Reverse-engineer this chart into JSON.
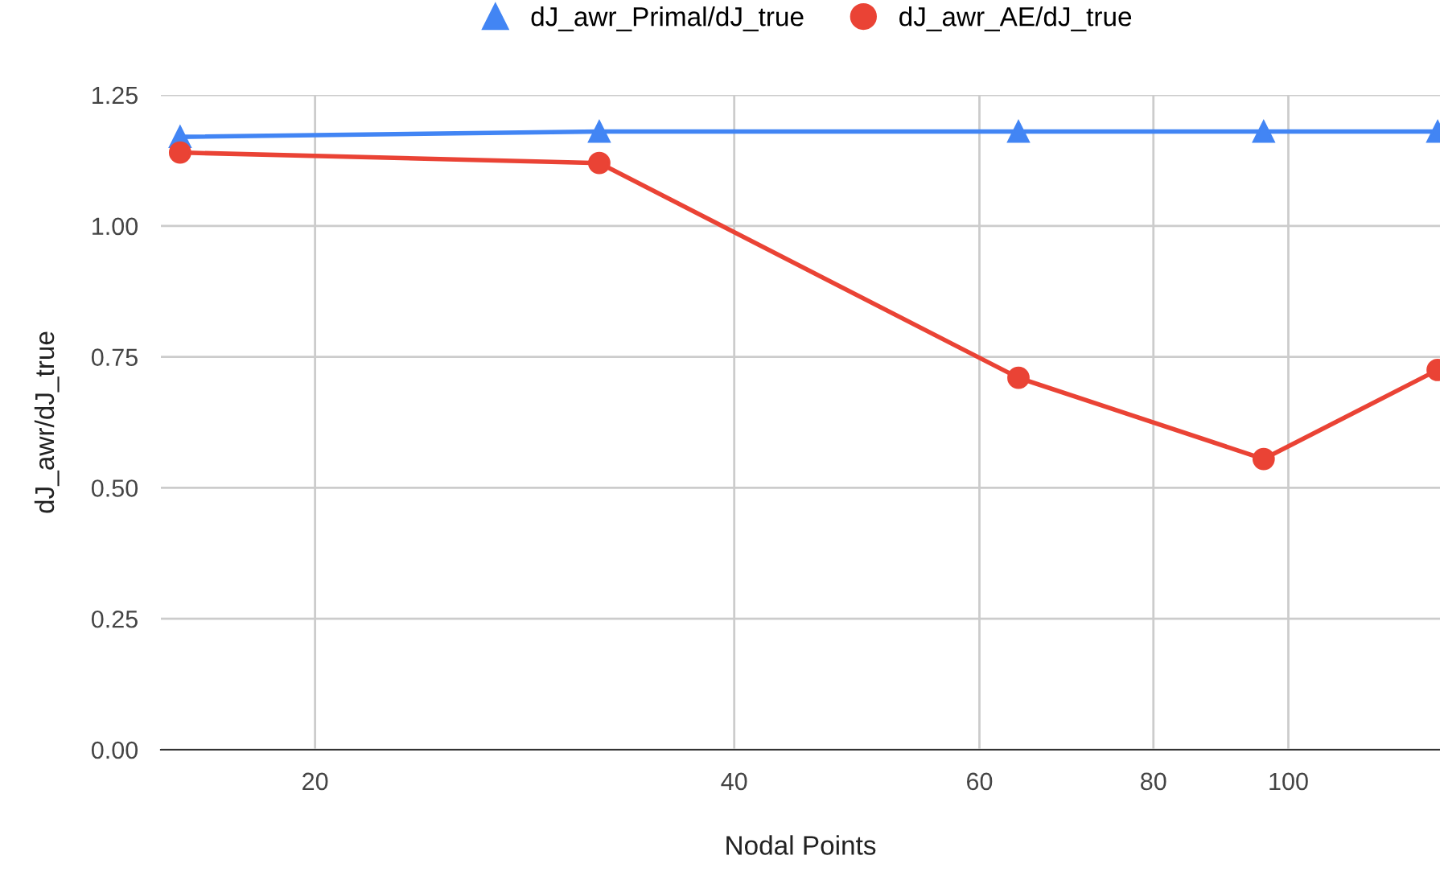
{
  "chart_data": {
    "type": "line",
    "xlabel": "Nodal Points",
    "ylabel": "dJ_awr/dJ_true",
    "x": [
      16,
      32,
      64,
      96,
      128
    ],
    "series": [
      {
        "name": "dJ_awr_Primal/dJ_true",
        "color": "#4285f4",
        "marker": "triangle",
        "values": [
          1.17,
          1.18,
          1.18,
          1.18,
          1.18
        ]
      },
      {
        "name": "dJ_awr_AE/dJ_true",
        "color": "#ea4335",
        "marker": "circle",
        "values": [
          1.14,
          1.12,
          0.71,
          0.555,
          0.725
        ]
      }
    ],
    "log": "x",
    "xlim": [
      15.5,
      128.5
    ],
    "xticks": [
      20,
      40,
      60,
      80,
      100
    ],
    "ylim": [
      0,
      1.25
    ],
    "yticks": [
      {
        "value": 0,
        "label": "0.00"
      },
      {
        "value": 0.25,
        "label": "0.25"
      },
      {
        "value": 0.5,
        "label": "0.50"
      },
      {
        "value": 0.75,
        "label": "0.75"
      },
      {
        "value": 1.0,
        "label": "1.00"
      },
      {
        "value": 1.25,
        "label": "1.25"
      }
    ],
    "grid": true,
    "legend": "top"
  }
}
